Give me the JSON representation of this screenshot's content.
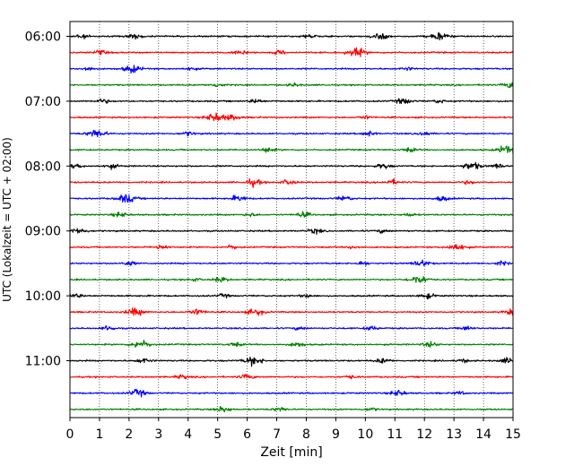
{
  "chart_data": {
    "type": "line",
    "title": "",
    "xlabel": "Zeit  [min]",
    "ylabel": "UTC (Lokalzeit = UTC + 02:00)",
    "xlim": [
      0,
      15
    ],
    "x_ticks": [
      "0",
      "1",
      "2",
      "3",
      "4",
      "5",
      "6",
      "7",
      "8",
      "9",
      "10",
      "11",
      "12",
      "13",
      "14",
      "15"
    ],
    "y_tick_labels": [
      "06:00",
      "07:00",
      "08:00",
      "09:00",
      "10:00",
      "11:00"
    ],
    "grid": "vertical dotted",
    "trace_minutes": 15,
    "trace_colors": [
      "#000000",
      "#ff0000",
      "#0000ff",
      "#008000"
    ],
    "traces_per_hour": 4,
    "series": [
      {
        "start": "06:00",
        "bursts": [
          [
            0.4,
            0.5
          ],
          [
            2.2,
            0.6
          ],
          [
            8.1,
            0.5
          ],
          [
            10.5,
            0.8
          ],
          [
            12.5,
            0.9
          ]
        ]
      },
      {
        "start": "06:15",
        "bursts": [
          [
            1.0,
            0.5
          ],
          [
            5.8,
            0.6
          ],
          [
            7.1,
            0.5
          ],
          [
            9.7,
            1.0
          ]
        ]
      },
      {
        "start": "06:30",
        "bursts": [
          [
            0.6,
            0.5
          ],
          [
            2.1,
            0.9
          ],
          [
            4.1,
            0.4
          ],
          [
            11.4,
            0.4
          ]
        ]
      },
      {
        "start": "06:45",
        "bursts": [
          [
            5.0,
            0.5
          ],
          [
            7.6,
            0.4
          ],
          [
            14.9,
            0.7
          ]
        ]
      },
      {
        "start": "07:00",
        "bursts": [
          [
            1.1,
            0.5
          ],
          [
            6.3,
            0.5
          ],
          [
            11.3,
            0.7
          ],
          [
            12.5,
            0.4
          ]
        ]
      },
      {
        "start": "07:15",
        "bursts": [
          [
            4.9,
            1.0
          ],
          [
            5.5,
            0.7
          ],
          [
            10.0,
            0.4
          ]
        ]
      },
      {
        "start": "07:30",
        "bursts": [
          [
            0.9,
            1.0
          ],
          [
            4.0,
            0.5
          ],
          [
            10.1,
            0.6
          ],
          [
            12.0,
            0.5
          ]
        ]
      },
      {
        "start": "07:45",
        "bursts": [
          [
            6.7,
            0.6
          ],
          [
            11.5,
            0.5
          ],
          [
            14.8,
            1.0
          ]
        ]
      },
      {
        "start": "08:00",
        "bursts": [
          [
            0.2,
            0.5
          ],
          [
            1.4,
            0.5
          ],
          [
            10.6,
            0.6
          ],
          [
            13.6,
            0.9
          ],
          [
            14.5,
            0.5
          ]
        ]
      },
      {
        "start": "08:15",
        "bursts": [
          [
            6.2,
            0.8
          ],
          [
            7.4,
            0.6
          ],
          [
            10.9,
            0.6
          ],
          [
            13.5,
            0.4
          ]
        ]
      },
      {
        "start": "08:30",
        "bursts": [
          [
            1.9,
            1.0
          ],
          [
            5.7,
            0.7
          ],
          [
            9.3,
            0.6
          ],
          [
            12.6,
            0.6
          ]
        ]
      },
      {
        "start": "08:45",
        "bursts": [
          [
            1.7,
            0.6
          ],
          [
            6.1,
            0.4
          ],
          [
            7.9,
            0.6
          ],
          [
            11.5,
            0.4
          ]
        ]
      },
      {
        "start": "09:00",
        "bursts": [
          [
            0.3,
            0.7
          ],
          [
            8.3,
            0.6
          ],
          [
            10.6,
            0.4
          ]
        ]
      },
      {
        "start": "09:15",
        "bursts": [
          [
            3.1,
            0.6
          ],
          [
            5.5,
            0.5
          ],
          [
            9.6,
            0.4
          ],
          [
            13.1,
            0.9
          ]
        ]
      },
      {
        "start": "09:30",
        "bursts": [
          [
            2.0,
            0.5
          ],
          [
            9.9,
            0.5
          ],
          [
            11.9,
            0.8
          ],
          [
            14.6,
            0.5
          ]
        ]
      },
      {
        "start": "09:45",
        "bursts": [
          [
            4.2,
            0.4
          ],
          [
            5.1,
            0.6
          ],
          [
            11.8,
            1.0
          ]
        ]
      },
      {
        "start": "10:00",
        "bursts": [
          [
            0.2,
            0.5
          ],
          [
            5.2,
            0.4
          ],
          [
            8.0,
            0.4
          ],
          [
            12.1,
            0.6
          ]
        ]
      },
      {
        "start": "10:15",
        "bursts": [
          [
            2.2,
            0.9
          ],
          [
            4.3,
            0.7
          ],
          [
            6.3,
            0.8
          ],
          [
            14.9,
            0.6
          ]
        ]
      },
      {
        "start": "10:30",
        "bursts": [
          [
            1.3,
            0.6
          ],
          [
            7.8,
            0.4
          ],
          [
            10.2,
            0.5
          ],
          [
            13.4,
            0.5
          ]
        ]
      },
      {
        "start": "10:45",
        "bursts": [
          [
            2.4,
            1.0
          ],
          [
            5.6,
            0.5
          ],
          [
            7.7,
            0.6
          ],
          [
            12.2,
            0.6
          ]
        ]
      },
      {
        "start": "11:00",
        "bursts": [
          [
            2.5,
            0.6
          ],
          [
            6.2,
            1.0
          ],
          [
            10.6,
            0.6
          ],
          [
            13.3,
            0.4
          ],
          [
            14.8,
            0.6
          ]
        ]
      },
      {
        "start": "11:15",
        "bursts": [
          [
            3.8,
            0.5
          ],
          [
            6.0,
            0.6
          ],
          [
            9.5,
            0.4
          ]
        ]
      },
      {
        "start": "11:30",
        "bursts": [
          [
            2.3,
            0.8
          ],
          [
            11.1,
            0.7
          ],
          [
            13.2,
            0.4
          ]
        ]
      },
      {
        "start": "11:45",
        "bursts": [
          [
            5.2,
            0.7
          ],
          [
            7.1,
            0.5
          ],
          [
            10.2,
            0.4
          ]
        ]
      }
    ]
  }
}
